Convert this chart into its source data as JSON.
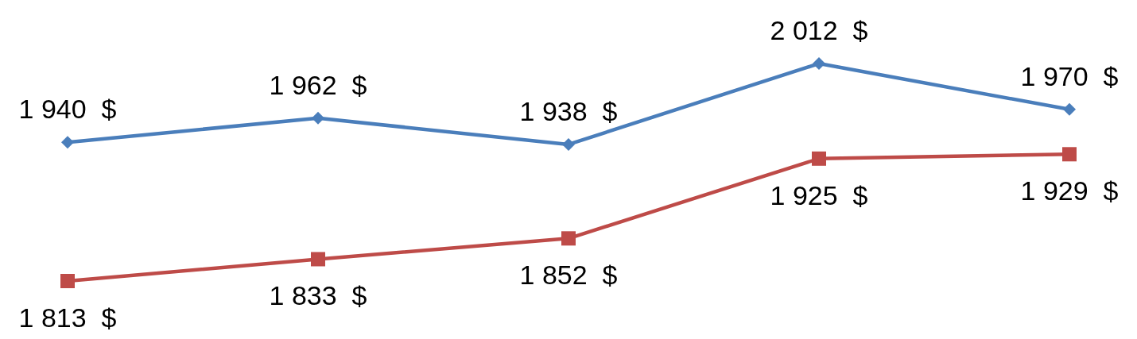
{
  "chart_data": {
    "type": "line",
    "categories": [
      null,
      null,
      null,
      null,
      null
    ],
    "series": [
      {
        "color": "#4a7ebb",
        "marker": "diamond",
        "values": [
          1940,
          1962,
          1938,
          2012,
          1970
        ],
        "value_labels": [
          "1 940  $",
          "1 962  $",
          "1 938  $",
          "2 012  $",
          "1 970  $"
        ]
      },
      {
        "color": "#be4b48",
        "marker": "square",
        "values": [
          1813,
          1833,
          1852,
          1925,
          1929
        ],
        "value_labels": [
          "1 813  $",
          "1 833  $",
          "1 852  $",
          "1 925  $",
          "1 929  $"
        ]
      }
    ],
    "line_style": "solid"
  }
}
